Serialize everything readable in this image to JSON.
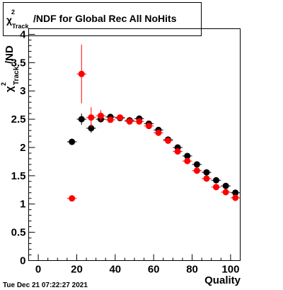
{
  "title": {
    "symbol": "χ",
    "superscript": "2",
    "subscript": "Track",
    "rest": "/NDF for Global Rec All NoHits"
  },
  "timestamp": "Tue Dec 21 07:22:27 2021",
  "chart_data": {
    "type": "scatter",
    "xlabel": "Quality",
    "ylabel": {
      "symbol": "χ",
      "superscript": "2",
      "subscript": "Track",
      "rest": "/ND"
    },
    "xlim": [
      -5,
      105
    ],
    "ylim": [
      0,
      4.1
    ],
    "x_ticks": [
      "0",
      "20",
      "40",
      "60",
      "80",
      "100"
    ],
    "y_ticks": [
      "0",
      "0.5",
      "1",
      "1.5",
      "2",
      "2.5",
      "3",
      "3.5",
      "4"
    ],
    "series": [
      {
        "color": "#000000",
        "points": [
          {
            "x": 17.5,
            "y": 2.1,
            "yerr": 0.02
          },
          {
            "x": 22.5,
            "y": 2.5,
            "yerr": 0.1
          },
          {
            "x": 27.5,
            "y": 2.34,
            "yerr": 0.08
          },
          {
            "x": 32.5,
            "y": 2.5,
            "yerr": 0.05
          },
          {
            "x": 37.5,
            "y": 2.54,
            "yerr": 0.04
          },
          {
            "x": 42.5,
            "y": 2.52,
            "yerr": 0.03
          },
          {
            "x": 47.5,
            "y": 2.48,
            "yerr": 0.03
          },
          {
            "x": 52.5,
            "y": 2.51,
            "yerr": 0.03
          },
          {
            "x": 57.5,
            "y": 2.42,
            "yerr": 0.03
          },
          {
            "x": 62.5,
            "y": 2.31,
            "yerr": 0.03
          },
          {
            "x": 67.5,
            "y": 2.14,
            "yerr": 0.02
          },
          {
            "x": 72.5,
            "y": 2.0,
            "yerr": 0.02
          },
          {
            "x": 77.5,
            "y": 1.85,
            "yerr": 0.02
          },
          {
            "x": 82.5,
            "y": 1.7,
            "yerr": 0.02
          },
          {
            "x": 87.5,
            "y": 1.56,
            "yerr": 0.02
          },
          {
            "x": 92.5,
            "y": 1.42,
            "yerr": 0.02
          },
          {
            "x": 97.5,
            "y": 1.32,
            "yerr": 0.02
          },
          {
            "x": 102.5,
            "y": 1.2,
            "yerr": 0.02
          }
        ]
      },
      {
        "color": "#ff0000",
        "points": [
          {
            "x": 17.5,
            "y": 1.1,
            "yerr": 0.02
          },
          {
            "x": 22.5,
            "y": 3.3,
            "yerr": 0.52
          },
          {
            "x": 27.5,
            "y": 2.53,
            "yerr": 0.18
          },
          {
            "x": 32.5,
            "y": 2.56,
            "yerr": 0.1
          },
          {
            "x": 37.5,
            "y": 2.49,
            "yerr": 0.05
          },
          {
            "x": 42.5,
            "y": 2.53,
            "yerr": 0.04
          },
          {
            "x": 47.5,
            "y": 2.46,
            "yerr": 0.04
          },
          {
            "x": 52.5,
            "y": 2.46,
            "yerr": 0.04
          },
          {
            "x": 57.5,
            "y": 2.38,
            "yerr": 0.03
          },
          {
            "x": 62.5,
            "y": 2.26,
            "yerr": 0.03
          },
          {
            "x": 67.5,
            "y": 2.12,
            "yerr": 0.03
          },
          {
            "x": 72.5,
            "y": 1.93,
            "yerr": 0.02
          },
          {
            "x": 77.5,
            "y": 1.76,
            "yerr": 0.02
          },
          {
            "x": 82.5,
            "y": 1.59,
            "yerr": 0.02
          },
          {
            "x": 87.5,
            "y": 1.45,
            "yerr": 0.02
          },
          {
            "x": 92.5,
            "y": 1.3,
            "yerr": 0.02
          },
          {
            "x": 97.5,
            "y": 1.21,
            "yerr": 0.02
          },
          {
            "x": 102.5,
            "y": 1.11,
            "yerr": 0.02
          }
        ]
      }
    ]
  }
}
